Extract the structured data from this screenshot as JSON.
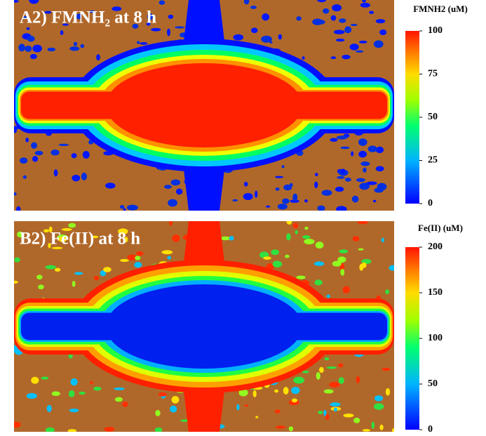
{
  "panels": [
    {
      "title": "A2) FMNH₂ at 8 h",
      "colorbar_label": "FMNH2 (uM)",
      "ticks": [
        100,
        75,
        50,
        25,
        0
      ]
    },
    {
      "title": "B2) Fe(II) at 8 h",
      "colorbar_label": "Fe(II) (uM)",
      "ticks": [
        200,
        150,
        100,
        50,
        0
      ]
    }
  ]
}
